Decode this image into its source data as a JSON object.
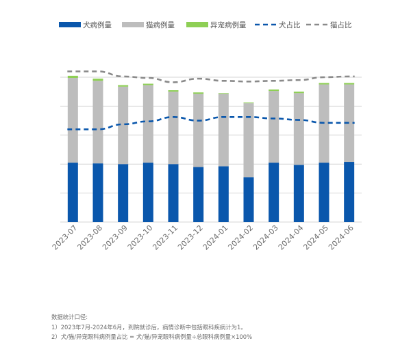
{
  "chart_data": {
    "type": "bar",
    "categories": [
      "2023-07",
      "2023-08",
      "2023-09",
      "2023-10",
      "2023-11",
      "2023-12",
      "2024-01",
      "2024-02",
      "2024-03",
      "2024-04",
      "2024-05",
      "2024-06"
    ],
    "series": [
      {
        "name": "犬病例量",
        "kind": "bar",
        "color": "#0a57ac",
        "values": [
          82,
          81,
          80,
          82,
          80,
          76,
          77,
          62,
          82,
          79,
          82,
          83
        ]
      },
      {
        "name": "猫病例量",
        "kind": "bar",
        "color": "#bdbdbd",
        "values": [
          117,
          114,
          107,
          107,
          100,
          101,
          100,
          102,
          99,
          99,
          108,
          107
        ]
      },
      {
        "name": "异宠病例量",
        "kind": "bar",
        "color": "#8ecf55",
        "values": [
          3,
          3,
          2,
          2,
          2,
          2,
          1,
          1,
          2,
          2,
          2,
          2
        ]
      },
      {
        "name": "犬占比",
        "kind": "line",
        "style": "dashed",
        "color": "#0a57ac",
        "values": [
          128,
          128,
          135,
          139,
          145,
          140,
          145,
          145,
          143,
          141,
          137,
          137
        ]
      },
      {
        "name": "猫占比",
        "kind": "line",
        "style": "dashed",
        "color": "#8a8a8a",
        "values": [
          208,
          208,
          201,
          199,
          193,
          198,
          195,
          194,
          195,
          196,
          200,
          201
        ]
      }
    ],
    "ylim": [
      0,
      250
    ],
    "y_gridlines": [
      0,
      40,
      80,
      120,
      160,
      200
    ],
    "grid": true,
    "legend_position": "top",
    "y_tick_labels_shown": false
  },
  "notes": {
    "heading": "数据统计口径:",
    "line1": "1）2023年7月-2024年6月，到院就诊后，病情诊断中包括眼科疾病计为1。",
    "line2": "2）犬/猫/异宠眼科病例量占比 = 犬/猫/异宠眼科病例量÷总眼科病例量×100%"
  }
}
